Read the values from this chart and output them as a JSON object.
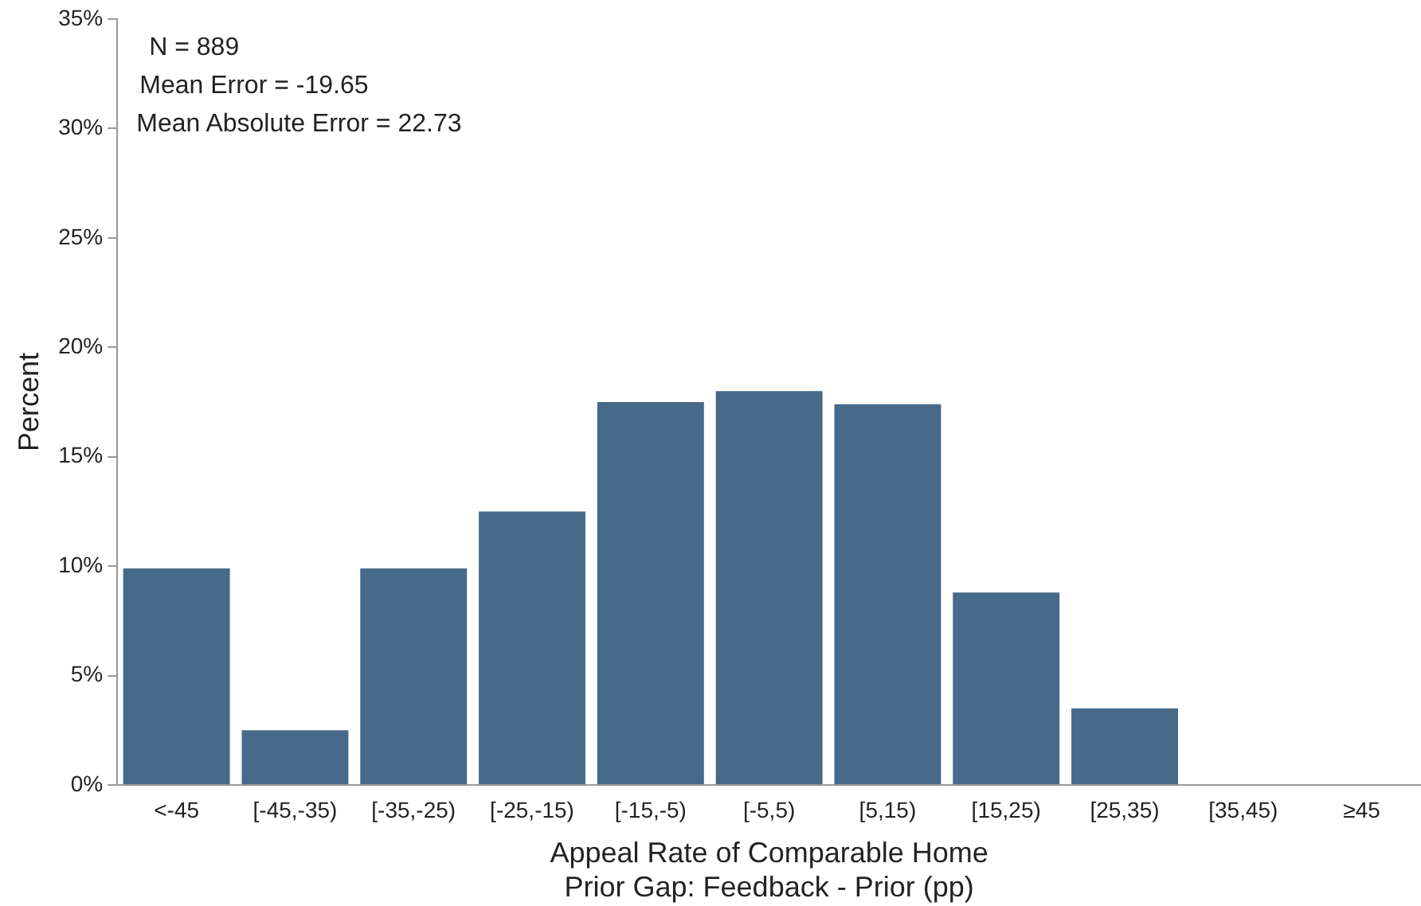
{
  "chart_data": {
    "type": "bar",
    "xlabel": "Appeal Rate of Comparable Home\nPrior Gap: Feedback - Prior (pp)",
    "ylabel": "Percent",
    "categories": [
      "<-45",
      "[-45,-35)",
      "[-35,-25)",
      "[-25,-15)",
      "[-15,-5)",
      "[-5,5)",
      "[5,15)",
      "[15,25)",
      "[25,35)",
      "[35,45)",
      "≥45"
    ],
    "values": [
      9.9,
      2.5,
      9.9,
      12.5,
      17.5,
      18.0,
      17.4,
      8.8,
      3.5,
      0,
      0
    ],
    "color": "#476a8a",
    "ylim": [
      0,
      35
    ],
    "yticks": [
      {
        "value": 0,
        "label": "0%"
      },
      {
        "value": 5,
        "label": "5%"
      },
      {
        "value": 10,
        "label": "10%"
      },
      {
        "value": 15,
        "label": "15%"
      },
      {
        "value": 20,
        "label": "20%"
      },
      {
        "value": 25,
        "label": "25%"
      },
      {
        "value": 30,
        "label": "30%"
      },
      {
        "value": 35,
        "label": "35%"
      }
    ],
    "annotations": [
      "N = 889",
      "Mean Error = -19.65",
      "Mean Absolute Error = 22.73"
    ],
    "grid": false,
    "legend": false
  }
}
